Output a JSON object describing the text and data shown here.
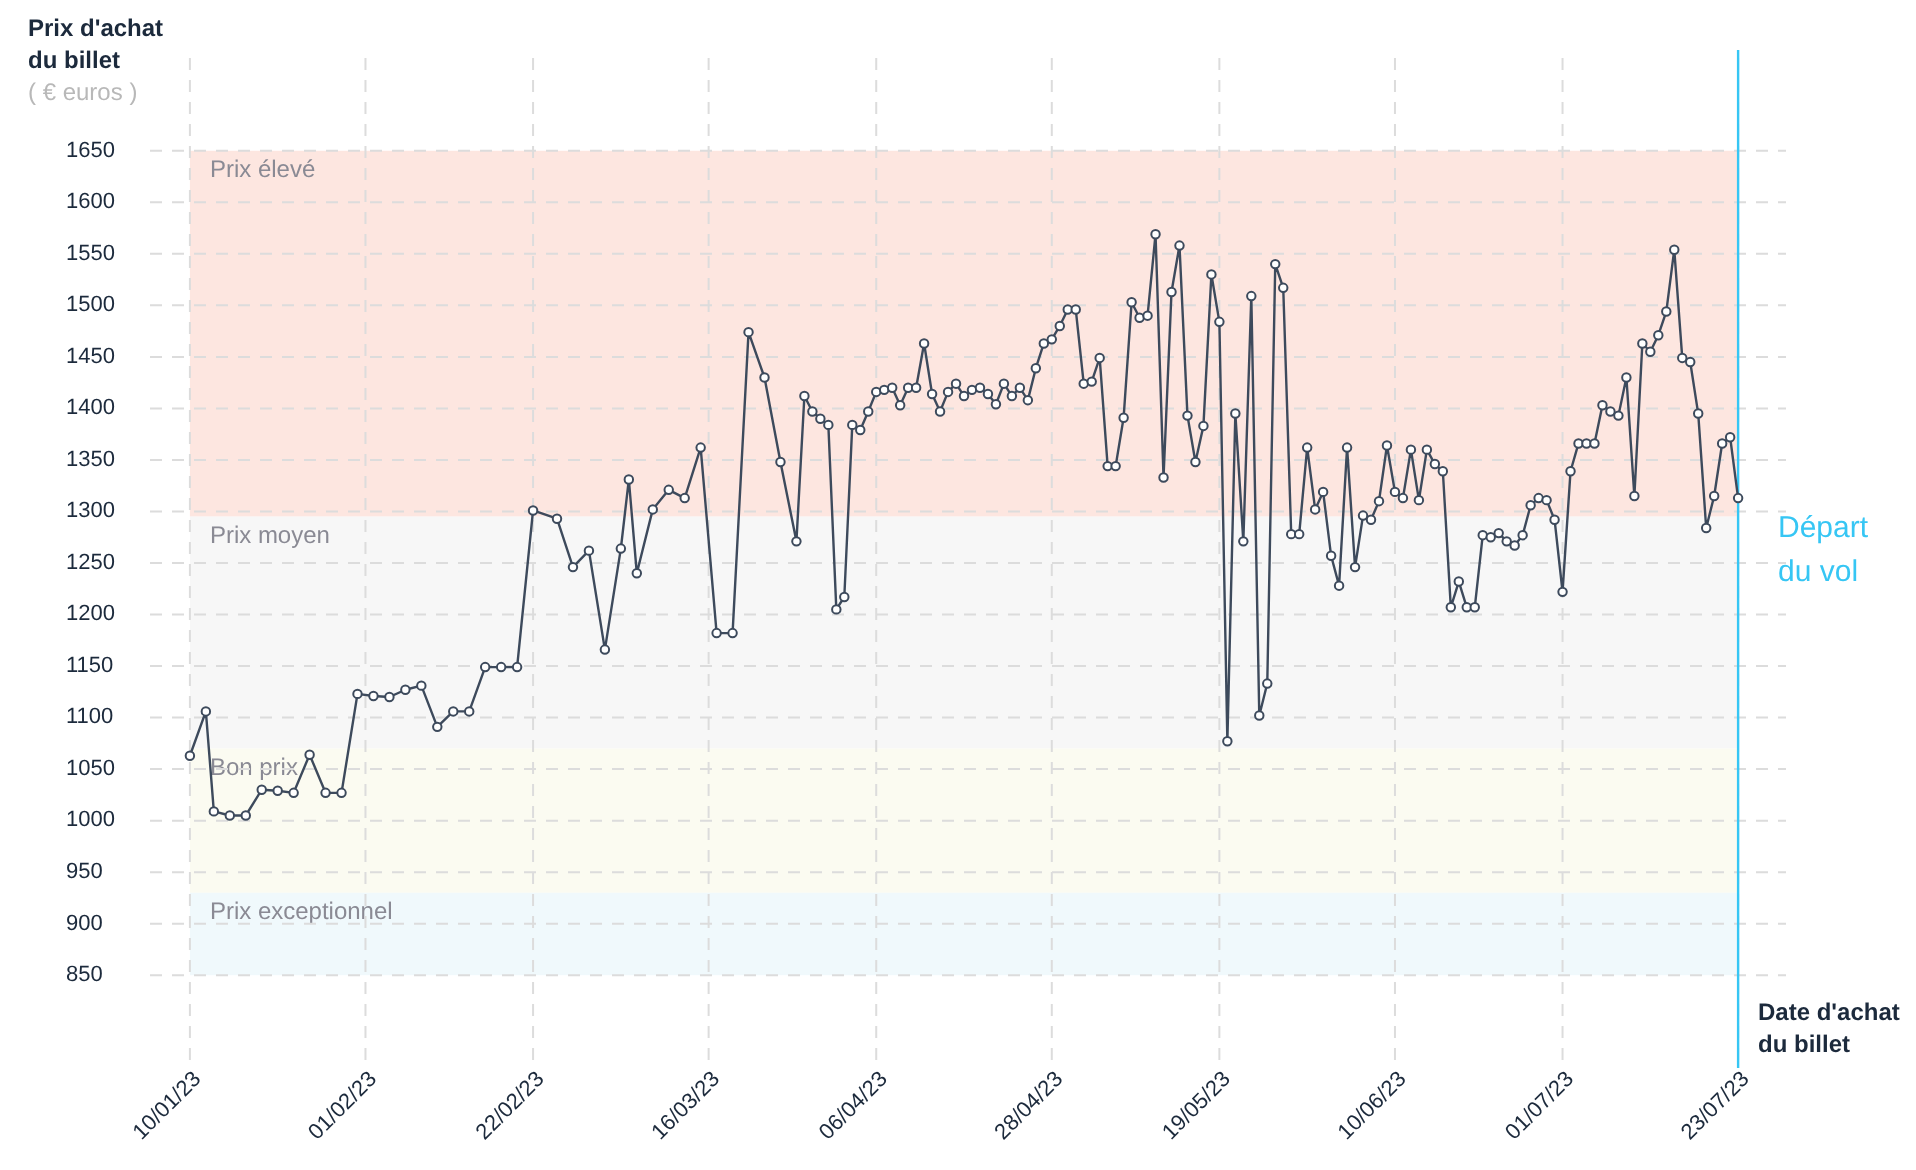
{
  "chart_data": {
    "type": "line",
    "ylabel": "Prix d'achat du billet",
    "xlabel": "Date d'achat du billet",
    "annotations": [
      "( € euros )"
    ],
    "xlim": [
      "2023-01-05",
      "2023-07-29"
    ],
    "xticks": [
      {
        "value": "2023-01-10",
        "label": "10/01/23"
      },
      {
        "value": "2023-02-01",
        "label": "01/02/23"
      },
      {
        "value": "2023-02-22",
        "label": "22/02/23"
      },
      {
        "value": "2023-03-16",
        "label": "16/03/23"
      },
      {
        "value": "2023-04-06",
        "label": "06/04/23"
      },
      {
        "value": "2023-04-28",
        "label": "28/04/23"
      },
      {
        "value": "2023-05-19",
        "label": "19/05/23"
      },
      {
        "value": "2023-06-10",
        "label": "10/06/23"
      },
      {
        "value": "2023-07-01",
        "label": "01/07/23"
      },
      {
        "value": "2023-07-23",
        "label": "23/07/23"
      }
    ],
    "ylim": [
      760,
      1740
    ],
    "yticks": [
      850,
      900,
      950,
      1000,
      1050,
      1100,
      1150,
      1200,
      1250,
      1300,
      1350,
      1400,
      1450,
      1500,
      1550,
      1600,
      1650
    ],
    "grid": true,
    "marker": "circle",
    "line_style": "solid",
    "bands": [
      {
        "axis": "y",
        "from": 1295,
        "to": 1650,
        "label": "Prix élevé",
        "color": "#fde6e0"
      },
      {
        "axis": "y",
        "from": 1070,
        "to": 1295,
        "label": "Prix moyen",
        "color": "#f7f7f7"
      },
      {
        "axis": "y",
        "from": 930,
        "to": 1070,
        "label": "Bon prix",
        "color": "#fbfbf1"
      },
      {
        "axis": "y",
        "from": 850,
        "to": 930,
        "label": "Prix exceptionnel",
        "color": "#f0f9fc"
      }
    ],
    "ref_lines": [
      {
        "axis": "x",
        "value": "2023-07-23",
        "label": "Départ du vol",
        "color": "#36c6f4"
      }
    ],
    "series": [
      {
        "color": "#3d4a5c",
        "x": [
          "2023-01-10",
          "2023-01-12",
          "2023-01-13",
          "2023-01-15",
          "2023-01-17",
          "2023-01-19",
          "2023-01-21",
          "2023-01-23",
          "2023-01-25",
          "2023-01-27",
          "2023-01-29",
          "2023-01-31",
          "2023-02-02",
          "2023-02-04",
          "2023-02-06",
          "2023-02-08",
          "2023-02-10",
          "2023-02-12",
          "2023-02-14",
          "2023-02-16",
          "2023-02-18",
          "2023-02-20",
          "2023-02-22",
          "2023-02-25",
          "2023-02-27",
          "2023-03-01",
          "2023-03-03",
          "2023-03-05",
          "2023-03-06",
          "2023-03-07",
          "2023-03-09",
          "2023-03-11",
          "2023-03-13",
          "2023-03-15",
          "2023-03-17",
          "2023-03-19",
          "2023-03-21",
          "2023-03-23",
          "2023-03-25",
          "2023-03-27",
          "2023-03-28",
          "2023-03-29",
          "2023-03-30",
          "2023-03-31",
          "2023-04-01",
          "2023-04-02",
          "2023-04-03",
          "2023-04-04",
          "2023-04-05",
          "2023-04-06",
          "2023-04-07",
          "2023-04-08",
          "2023-04-09",
          "2023-04-10",
          "2023-04-11",
          "2023-04-12",
          "2023-04-13",
          "2023-04-14",
          "2023-04-15",
          "2023-04-16",
          "2023-04-17",
          "2023-04-18",
          "2023-04-19",
          "2023-04-20",
          "2023-04-21",
          "2023-04-22",
          "2023-04-23",
          "2023-04-24",
          "2023-04-25",
          "2023-04-26",
          "2023-04-27",
          "2023-04-28",
          "2023-04-29",
          "2023-04-30",
          "2023-05-01",
          "2023-05-02",
          "2023-05-03",
          "2023-05-04",
          "2023-05-05",
          "2023-05-06",
          "2023-05-07",
          "2023-05-08",
          "2023-05-09",
          "2023-05-10",
          "2023-05-11",
          "2023-05-12",
          "2023-05-13",
          "2023-05-14",
          "2023-05-15",
          "2023-05-16",
          "2023-05-17",
          "2023-05-18",
          "2023-05-19",
          "2023-05-20",
          "2023-05-21",
          "2023-05-22",
          "2023-05-23",
          "2023-05-24",
          "2023-05-25",
          "2023-05-26",
          "2023-05-27",
          "2023-05-28",
          "2023-05-29",
          "2023-05-30",
          "2023-05-31",
          "2023-06-01",
          "2023-06-02",
          "2023-06-03",
          "2023-06-04",
          "2023-06-05",
          "2023-06-06",
          "2023-06-07",
          "2023-06-08",
          "2023-06-09",
          "2023-06-10",
          "2023-06-11",
          "2023-06-12",
          "2023-06-13",
          "2023-06-14",
          "2023-06-15",
          "2023-06-16",
          "2023-06-17",
          "2023-06-18",
          "2023-06-19",
          "2023-06-20",
          "2023-06-21",
          "2023-06-22",
          "2023-06-23",
          "2023-06-24",
          "2023-06-25",
          "2023-06-26",
          "2023-06-27",
          "2023-06-28",
          "2023-06-29",
          "2023-06-30",
          "2023-07-01",
          "2023-07-02",
          "2023-07-03",
          "2023-07-04",
          "2023-07-05",
          "2023-07-06",
          "2023-07-07",
          "2023-07-08",
          "2023-07-09",
          "2023-07-10",
          "2023-07-11",
          "2023-07-12",
          "2023-07-13",
          "2023-07-14",
          "2023-07-15",
          "2023-07-16",
          "2023-07-17",
          "2023-07-18",
          "2023-07-19",
          "2023-07-20",
          "2023-07-21",
          "2023-07-22",
          "2023-07-23"
        ],
        "values": [
          1063,
          1106,
          1009,
          1005,
          1005,
          1030,
          1029,
          1027,
          1064,
          1027,
          1027,
          1123,
          1121,
          1120,
          1127,
          1131,
          1091,
          1106,
          1106,
          1149,
          1149,
          1149,
          1301,
          1293,
          1246,
          1262,
          1166,
          1264,
          1331,
          1240,
          1302,
          1321,
          1313,
          1362,
          1182,
          1182,
          1474,
          1430,
          1348,
          1271,
          1412,
          1397,
          1390,
          1384,
          1205,
          1217,
          1384,
          1379,
          1397,
          1416,
          1418,
          1420,
          1403,
          1420,
          1420,
          1463,
          1414,
          1397,
          1416,
          1424,
          1412,
          1418,
          1420,
          1414,
          1404,
          1424,
          1412,
          1420,
          1408,
          1439,
          1463,
          1467,
          1480,
          1496,
          1496,
          1424,
          1426,
          1449,
          1344,
          1344,
          1391,
          1503,
          1488,
          1490,
          1569,
          1333,
          1513,
          1558,
          1393,
          1348,
          1383,
          1530,
          1484,
          1077,
          1395,
          1271,
          1509,
          1102,
          1133,
          1540,
          1517,
          1278,
          1278,
          1362,
          1302,
          1319,
          1257,
          1228,
          1362,
          1246,
          1296,
          1292,
          1310,
          1364,
          1319,
          1313,
          1360,
          1311,
          1360,
          1346,
          1339,
          1207,
          1232,
          1207,
          1207,
          1277,
          1275,
          1279,
          1271,
          1267,
          1277,
          1306,
          1313,
          1311,
          1292,
          1222,
          1339,
          1366,
          1366,
          1366,
          1403,
          1397,
          1393,
          1430,
          1315,
          1463,
          1455,
          1471,
          1494,
          1554,
          1449,
          1445,
          1395,
          1284,
          1315,
          1366,
          1372,
          1313
        ]
      }
    ]
  }
}
